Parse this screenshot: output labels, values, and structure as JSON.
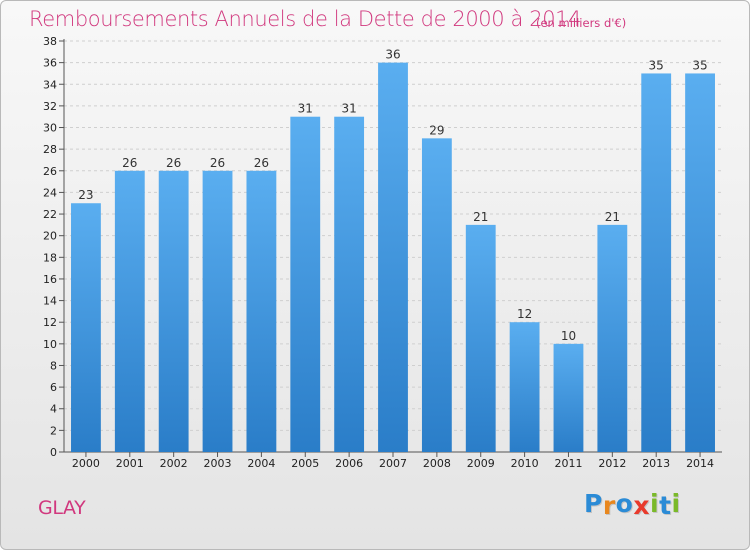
{
  "title": "Remboursements Annuels de la Dette de 2000 à 2014",
  "subtitle": "(en milliers d'€)",
  "commune": "GLAY",
  "logo": {
    "letters": [
      "P",
      "r",
      "o",
      "x",
      "i",
      "t",
      "i"
    ],
    "colors": [
      "#2b8bd6",
      "#e8871e",
      "#2b8bd6",
      "#e83a2c",
      "#7ab929",
      "#2b8bd6",
      "#7ab929"
    ]
  },
  "colors": {
    "bar_light": "#5aaef0",
    "bar_dark": "#2a7dc8",
    "accent": "#d1387e"
  },
  "chart_data": {
    "type": "bar",
    "categories": [
      "2000",
      "2001",
      "2002",
      "2003",
      "2004",
      "2005",
      "2006",
      "2007",
      "2008",
      "2009",
      "2010",
      "2011",
      "2012",
      "2013",
      "2014"
    ],
    "values": [
      23,
      26,
      26,
      26,
      26,
      31,
      31,
      36,
      29,
      21,
      12,
      10,
      21,
      35,
      35
    ],
    "ylim": [
      0,
      38
    ],
    "yticks": [
      0,
      2,
      4,
      6,
      8,
      10,
      12,
      14,
      16,
      18,
      20,
      22,
      24,
      26,
      28,
      30,
      32,
      34,
      36,
      38
    ],
    "grid": true,
    "data_labels": true
  }
}
